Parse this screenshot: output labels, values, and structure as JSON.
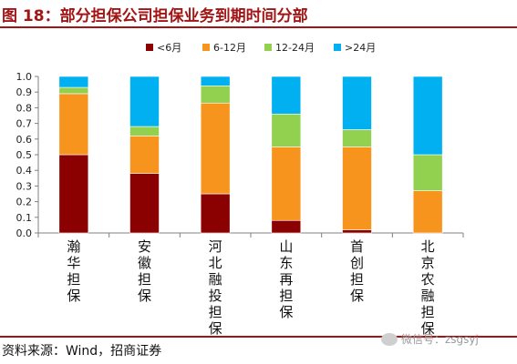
{
  "header": {
    "title": "图 18：部分担保公司担保业务到期时间分部"
  },
  "footer": {
    "source": "资料来源：Wind，招商证券",
    "watermark": "微信号：zsgsyj"
  },
  "colors": {
    "title": "#a31515",
    "series": [
      "#8b0000",
      "#f7941d",
      "#92d050",
      "#00b0f0"
    ]
  },
  "chart_data": {
    "type": "bar",
    "stacked": true,
    "categories": [
      "瀚华担保",
      "安徽担保",
      "河北融投担保",
      "山东再担保",
      "首创担保",
      "北京农融担保"
    ],
    "series": [
      {
        "name": "<6月",
        "values": [
          0.5,
          0.38,
          0.25,
          0.08,
          0.02,
          0.0
        ]
      },
      {
        "name": "6-12月",
        "values": [
          0.39,
          0.24,
          0.58,
          0.47,
          0.53,
          0.27
        ]
      },
      {
        "name": "12-24月",
        "values": [
          0.04,
          0.06,
          0.11,
          0.21,
          0.11,
          0.23
        ]
      },
      {
        "name": ">24月",
        "values": [
          0.07,
          0.32,
          0.06,
          0.24,
          0.34,
          0.5
        ]
      }
    ],
    "yticks": [
      "0.0",
      "0.1",
      "0.2",
      "0.3",
      "0.4",
      "0.5",
      "0.6",
      "0.7",
      "0.8",
      "0.9",
      "1.0"
    ],
    "ylim": [
      0,
      1.0
    ],
    "grid": false,
    "legend": "top-center"
  }
}
